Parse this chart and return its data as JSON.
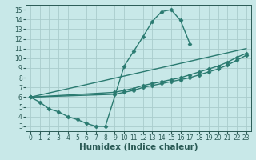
{
  "background_color": "#c8e8e8",
  "grid_color": "#aacccc",
  "line_color": "#2a7a70",
  "xlabel": "Humidex (Indice chaleur)",
  "xlim": [
    -0.5,
    23.5
  ],
  "ylim": [
    2.5,
    15.5
  ],
  "xticks": [
    0,
    1,
    2,
    3,
    4,
    5,
    6,
    7,
    8,
    9,
    10,
    11,
    12,
    13,
    14,
    15,
    16,
    17,
    18,
    19,
    20,
    21,
    22,
    23
  ],
  "yticks": [
    3,
    4,
    5,
    6,
    7,
    8,
    9,
    10,
    11,
    12,
    13,
    14,
    15
  ],
  "line1_x": [
    0,
    1,
    2,
    3,
    4,
    5,
    6,
    7,
    8,
    10,
    11,
    12,
    13,
    14,
    15,
    16,
    17
  ],
  "line1_y": [
    6.0,
    5.5,
    4.8,
    4.5,
    4.0,
    3.7,
    3.3,
    3.0,
    3.0,
    9.2,
    10.7,
    12.2,
    13.8,
    14.8,
    15.0,
    13.9,
    11.5
  ],
  "line2_x": [
    0,
    23
  ],
  "line2_y": [
    6.0,
    11.0
  ],
  "line3_x": [
    0,
    9,
    10,
    11,
    12,
    13,
    14,
    15,
    16,
    17,
    18,
    19,
    20,
    21,
    22,
    23
  ],
  "line3_y": [
    6.0,
    6.5,
    6.7,
    6.9,
    7.2,
    7.4,
    7.6,
    7.8,
    8.0,
    8.3,
    8.6,
    8.9,
    9.2,
    9.6,
    10.1,
    10.5
  ],
  "line4_x": [
    0,
    9,
    10,
    11,
    12,
    13,
    14,
    15,
    16,
    17,
    18,
    19,
    20,
    21,
    22,
    23
  ],
  "line4_y": [
    6.0,
    6.3,
    6.5,
    6.7,
    7.0,
    7.2,
    7.4,
    7.6,
    7.8,
    8.0,
    8.3,
    8.6,
    8.9,
    9.3,
    9.8,
    10.3
  ],
  "marker": "D",
  "marker_size": 2.5,
  "linewidth": 1.0,
  "tick_fontsize": 5.5,
  "xlabel_fontsize": 7.5
}
